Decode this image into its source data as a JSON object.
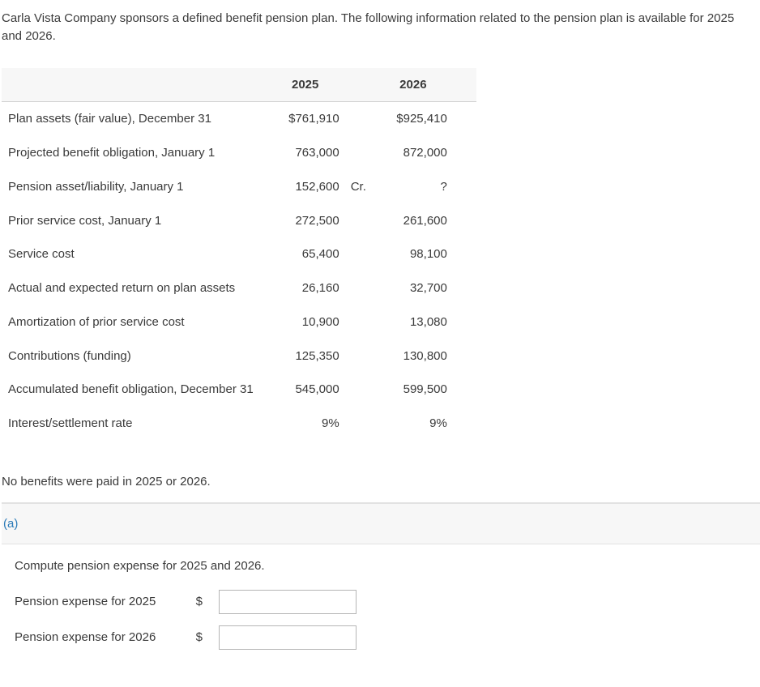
{
  "intro_text": "Carla Vista Company sponsors a defined benefit pension plan. The following information related to the pension plan is available for 2025 and 2026.",
  "table": {
    "col_headers": [
      "2025",
      "2026"
    ],
    "rows": [
      {
        "label": "Plan assets (fair value), December 31",
        "c1": "$761,910",
        "s1": "",
        "c2": "$925,410",
        "s2": ""
      },
      {
        "label": "Projected benefit obligation, January 1",
        "c1": "763,000",
        "s1": "",
        "c2": "872,000",
        "s2": ""
      },
      {
        "label": "Pension asset/liability, January 1",
        "c1": "152,600",
        "s1": "Cr.",
        "c2": "?",
        "s2": ""
      },
      {
        "label": "Prior service cost, January 1",
        "c1": "272,500",
        "s1": "",
        "c2": "261,600",
        "s2": ""
      },
      {
        "label": "Service cost",
        "c1": "65,400",
        "s1": "",
        "c2": "98,100",
        "s2": ""
      },
      {
        "label": "Actual and expected return on plan assets",
        "c1": "26,160",
        "s1": "",
        "c2": "32,700",
        "s2": ""
      },
      {
        "label": "Amortization of prior service cost",
        "c1": "10,900",
        "s1": "",
        "c2": "13,080",
        "s2": ""
      },
      {
        "label": "Contributions (funding)",
        "c1": "125,350",
        "s1": "",
        "c2": "130,800",
        "s2": ""
      },
      {
        "label": "Accumulated benefit obligation, December 31",
        "c1": "545,000",
        "s1": "",
        "c2": "599,500",
        "s2": ""
      },
      {
        "label": "Interest/settlement rate",
        "c1": "9%",
        "s1": "",
        "c2": "9%",
        "s2": ""
      }
    ]
  },
  "note_text": "No benefits were paid in 2025 or 2026.",
  "part": {
    "label": "(a)",
    "question": "Compute pension expense for 2025 and 2026.",
    "inputs": [
      {
        "label": "Pension expense for 2025",
        "currency": "$",
        "value": ""
      },
      {
        "label": "Pension expense for 2026",
        "currency": "$",
        "value": ""
      }
    ]
  },
  "colors": {
    "link": "#2b7bb9",
    "text": "#3a3a3a",
    "header_bg": "#f7f7f7",
    "border": "#e2e2e2",
    "input_border": "#b5b5b5"
  }
}
